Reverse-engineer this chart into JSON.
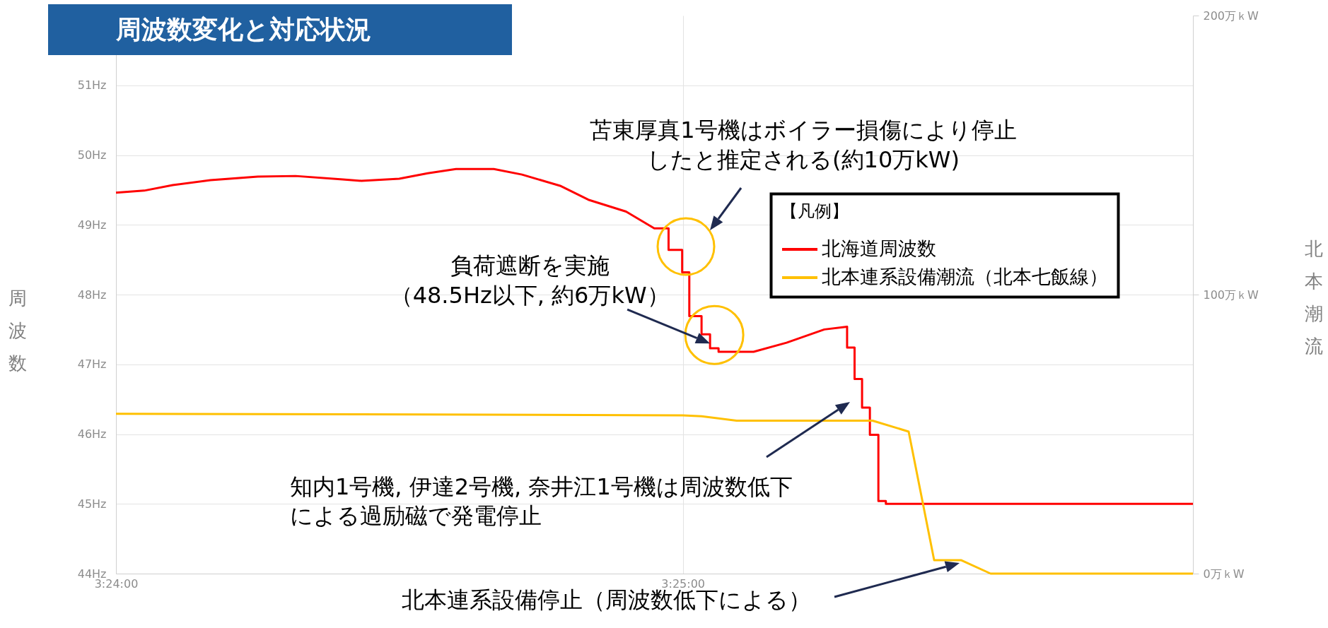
{
  "chart_data": {
    "type": "line",
    "title": "周波数変化と対応状況",
    "ylabel": "周波数",
    "y2label": "北本潮流",
    "legend_title": "【凡例】",
    "legend": "top right",
    "grid": true,
    "xlim": [
      3.4,
      3.43167
    ],
    "xticks": [
      {
        "value": 3.4,
        "label": "3:24:00"
      },
      {
        "value": 3.41667,
        "label": "3:25:00"
      }
    ],
    "ylim": [
      44,
      52
    ],
    "yticks": [
      {
        "value": 44,
        "label": "44Hz"
      },
      {
        "value": 45,
        "label": "45Hz"
      },
      {
        "value": 46,
        "label": "46Hz"
      },
      {
        "value": 47,
        "label": "47Hz"
      },
      {
        "value": 48,
        "label": "48Hz"
      },
      {
        "value": 49,
        "label": "49Hz"
      },
      {
        "value": 50,
        "label": "50Hz"
      },
      {
        "value": 51,
        "label": "51Hz"
      }
    ],
    "y2lim": [
      0,
      200
    ],
    "y2ticks": [
      {
        "value": 0,
        "label": "0万ｋW"
      },
      {
        "value": 100,
        "label": "100万ｋW"
      },
      {
        "value": 200,
        "label": "200万ｋW"
      }
    ],
    "series": [
      {
        "name": "北海道周波数",
        "type": "line",
        "color": "#ff0000",
        "x": [
          3.4,
          3.40083,
          3.40167,
          3.40278,
          3.40417,
          3.40528,
          3.40667,
          3.40722,
          3.40833,
          3.40917,
          3.41,
          3.41111,
          3.41194,
          3.41306,
          3.41389,
          3.415,
          3.41583,
          3.41625,
          3.41625,
          3.41665,
          3.41665,
          3.41686,
          3.41686,
          3.41722,
          3.41722,
          3.41747,
          3.41747,
          3.41772,
          3.41772,
          3.41875,
          3.41972,
          3.42083,
          3.4215,
          3.4215,
          3.42172,
          3.42172,
          3.42194,
          3.42194,
          3.42217,
          3.42217,
          3.42242,
          3.42242,
          3.42264,
          3.42264,
          3.43167
        ],
        "values": [
          49.46,
          49.49,
          49.57,
          49.64,
          49.69,
          49.7,
          49.65,
          49.63,
          49.66,
          49.74,
          49.8,
          49.8,
          49.72,
          49.56,
          49.36,
          49.19,
          48.95,
          48.95,
          48.64,
          48.64,
          48.32,
          48.32,
          47.69,
          47.69,
          47.43,
          47.43,
          47.23,
          47.23,
          47.18,
          47.18,
          47.31,
          47.5,
          47.54,
          47.24,
          47.24,
          46.79,
          46.79,
          46.38,
          46.38,
          45.99,
          45.99,
          45.04,
          45.04,
          45,
          45
        ]
      },
      {
        "name": "北本連系設備潮流（北本七飯線）",
        "type": "line",
        "axis": "y2",
        "color": "#ffc000",
        "x": [
          3.4,
          3.40917,
          3.41667,
          3.41722,
          3.41825,
          3.42225,
          3.42331,
          3.42406,
          3.42486,
          3.42572,
          3.43167
        ],
        "values": [
          57.3,
          57,
          56.7,
          56.4,
          54.8,
          54.8,
          50.9,
          4.8,
          4.8,
          0,
          0
        ]
      }
    ],
    "annotations": [
      "苫東厚真1号機はボイラー損傷により停止したと推定される(約10万kW)",
      {
        "text": "負荷遮断を実施（48.5Hz以下, 約6万kW）",
        "x": 3.41747,
        "y": 47.3
      },
      "知内1号機, 伊達2号機, 奈井江1号機は周波数低下による過励磁で発電停止",
      "北本連系設備停止（周波数低下による）"
    ]
  }
}
